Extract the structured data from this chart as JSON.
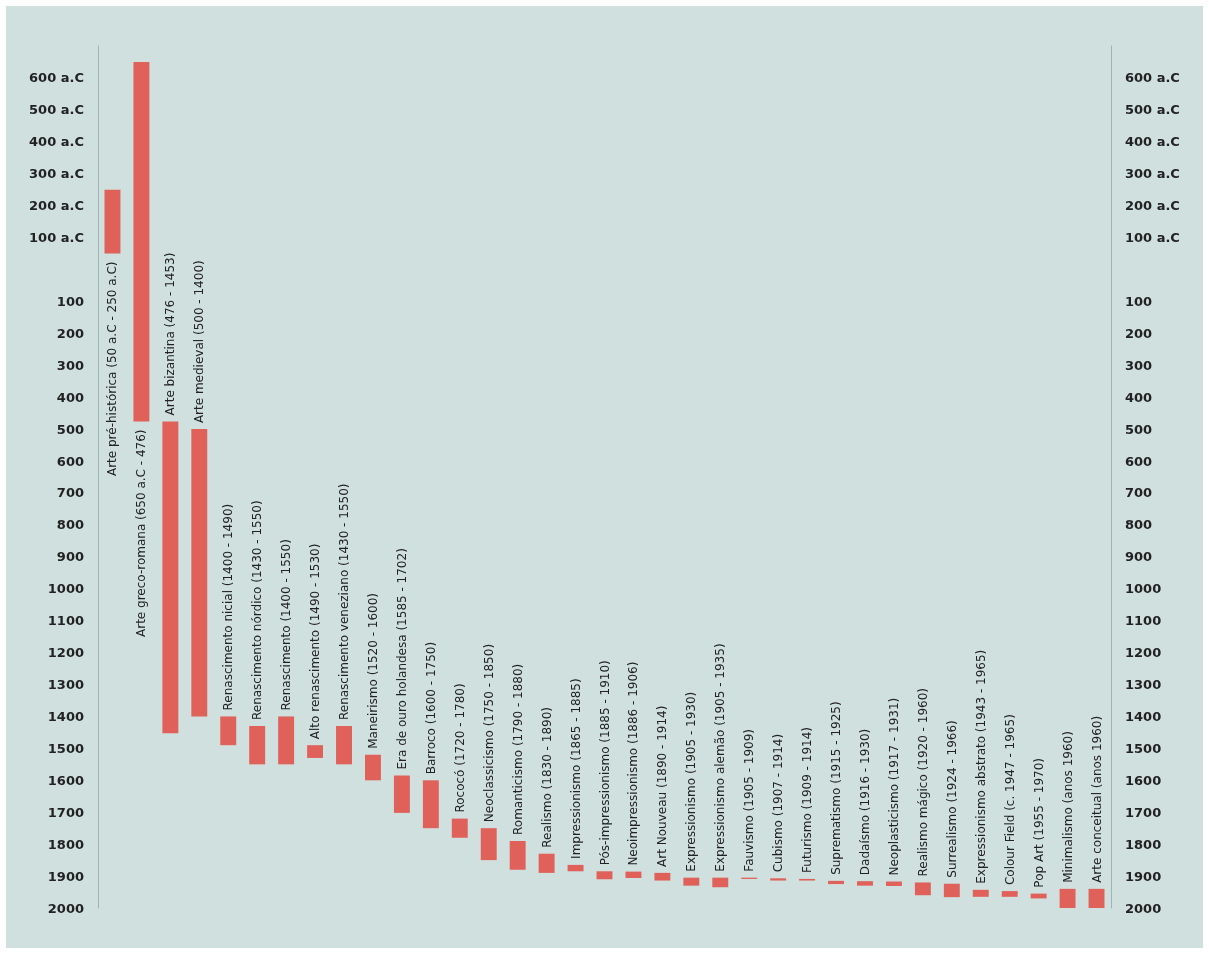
{
  "chart_data": {
    "type": "bar",
    "categories": [
      "Arte pré-histórica (50 a.C - 250 a.C)",
      "Arte greco-romana (650 a.C - 476)",
      "Arte bizantina (476 - 1453)",
      "Arte medieval (500 - 1400)",
      "Renascimento nicial (1400 - 1490)",
      "Renascimento nórdico (1430 - 1550)",
      "Renascimento (1400 - 1550)",
      "Alto renascimento (1490 - 1530)",
      "Renascimento veneziano (1430 - 1550)",
      "Maneirismo (1520 - 1600)",
      "Era de ouro holandesa (1585 - 1702)",
      "Barroco (1600 - 1750)",
      "Rococó (1720 - 1780)",
      "Neoclassicismo (1750 - 1850)",
      "Romanticismo (1790 - 1880)",
      "Realismo (1830 - 1890)",
      "Impressionismo (1865 - 1885)",
      "Pós-impressionismo (1885 - 1910)",
      "Neoimpressionismo (1886 - 1906)",
      "Art Nouveau (1890 - 1914)",
      "Expressionismo (1905 - 1930)",
      "Expressionismo alemão (1905 - 1935)",
      "Fauvismo (1905 - 1909)",
      "Cubismo (1907 - 1914)",
      "Futurismo (1909 - 1914)",
      "Suprematismo (1915 - 1925)",
      "Dadaísmo (1916 - 1930)",
      "Neoplasticismo (1917 - 1931)",
      "Realismo mágico (1920 - 1960)",
      "Surrealismo (1924 - 1966)",
      "Expressionismo abstrato (1943 - 1965)",
      "Colour Field (c. 1947 - 1965)",
      "Pop Art (1955 - 1970)",
      "Minimalismo (anos 1960)",
      "Arte conceitual (anos 1960)"
    ],
    "base": [
      -250,
      -650,
      476,
      500,
      1400,
      1430,
      1400,
      1490,
      1430,
      1520,
      1585,
      1600,
      1720,
      1750,
      1790,
      1830,
      1865,
      1885,
      1886,
      1890,
      1905,
      1905,
      1905,
      1907,
      1909,
      1915,
      1916,
      1917,
      1920,
      1924,
      1943,
      1947,
      1955,
      1940,
      1940
    ],
    "values": [
      200,
      1126,
      977,
      900,
      90,
      120,
      150,
      40,
      120,
      80,
      117,
      150,
      60,
      100,
      90,
      60,
      20,
      25,
      20,
      24,
      25,
      30,
      4,
      7,
      5,
      10,
      14,
      14,
      40,
      42,
      22,
      18,
      15,
      60,
      60
    ],
    "color": "#e0605a",
    "ylim": [
      2000,
      -700
    ],
    "yticks": [
      {
        "value": -600,
        "label": "600 a.C"
      },
      {
        "value": -500,
        "label": "500 a.C"
      },
      {
        "value": -400,
        "label": "400 a.C"
      },
      {
        "value": -300,
        "label": "300 a.C"
      },
      {
        "value": -200,
        "label": "200 a.C"
      },
      {
        "value": -100,
        "label": "100 a.C"
      },
      100,
      200,
      300,
      400,
      500,
      600,
      700,
      800,
      900,
      1000,
      1100,
      1200,
      1300,
      1400,
      1500,
      1600,
      1700,
      1800,
      1900,
      2000
    ],
    "y2lim": [
      2000,
      -700
    ],
    "y2ticks": [
      {
        "value": -600,
        "label": "600 a.C"
      },
      {
        "value": -500,
        "label": "500 a.C"
      },
      {
        "value": -400,
        "label": "400 a.C"
      },
      {
        "value": -300,
        "label": "300 a.C"
      },
      {
        "value": -200,
        "label": "200 a.C"
      },
      {
        "value": -100,
        "label": "100 a.C"
      },
      100,
      200,
      300,
      400,
      500,
      600,
      700,
      800,
      900,
      1000,
      1100,
      1200,
      1300,
      1400,
      1500,
      1600,
      1700,
      1800,
      1900,
      2000
    ],
    "grid": false
  }
}
